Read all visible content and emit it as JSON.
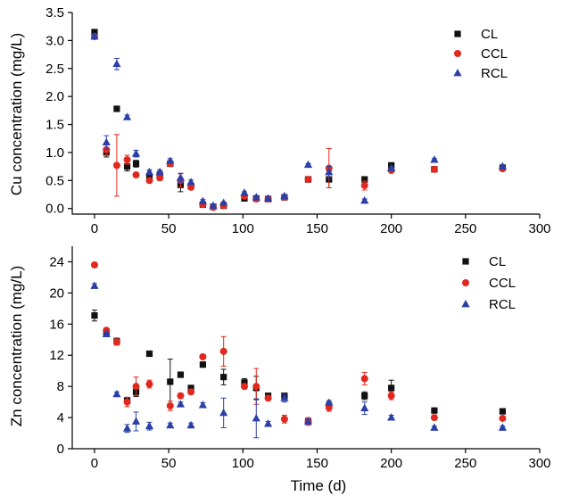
{
  "chart_data": [
    {
      "type": "scatter",
      "ylabel": "Cu concentration (mg/L)",
      "xlabel": "",
      "xlim": [
        -15,
        300
      ],
      "ylim": [
        -0.1,
        3.5
      ],
      "xticks": [
        0,
        50,
        100,
        150,
        200,
        250,
        300
      ],
      "yticks": [
        0.0,
        0.5,
        1.0,
        1.5,
        2.0,
        2.5,
        3.0,
        3.5
      ],
      "ytick_labels": [
        "0.0",
        "0.5",
        "1.0",
        "1.5",
        "2.0",
        "2.5",
        "3.0",
        "3.5"
      ],
      "legend_position": "top-right",
      "series": [
        {
          "name": "CL",
          "marker": "square",
          "color": "#111111",
          "x": [
            0,
            8,
            15,
            22,
            28,
            37,
            44,
            51,
            58,
            65,
            73,
            80,
            87,
            101,
            109,
            117,
            128,
            144,
            158,
            182,
            200,
            229,
            275
          ],
          "y": [
            3.15,
            1.0,
            1.78,
            0.75,
            0.8,
            0.55,
            0.6,
            0.8,
            0.42,
            0.4,
            0.07,
            0.03,
            0.05,
            0.18,
            0.18,
            0.17,
            0.2,
            0.52,
            0.52,
            0.52,
            0.77,
            0.7,
            0.73
          ],
          "err": [
            0.04,
            0.08,
            0,
            0.08,
            0.06,
            0.04,
            0.06,
            0.04,
            0.12,
            0.04,
            0.02,
            0.02,
            0.02,
            0.02,
            0.02,
            0.02,
            0.02,
            0.03,
            0.15,
            0.03,
            0.02,
            0.04,
            0.03
          ]
        },
        {
          "name": "CCL",
          "marker": "circle",
          "color": "#e0281e",
          "x": [
            0,
            8,
            15,
            22,
            28,
            37,
            44,
            51,
            58,
            65,
            73,
            80,
            87,
            101,
            109,
            117,
            128,
            144,
            158,
            182,
            200,
            229,
            275
          ],
          "y": [
            3.07,
            1.05,
            0.77,
            0.87,
            0.6,
            0.5,
            0.55,
            0.8,
            0.5,
            0.38,
            0.07,
            0.02,
            0.05,
            0.22,
            0.17,
            0.17,
            0.2,
            0.52,
            0.72,
            0.41,
            0.68,
            0.7,
            0.71
          ],
          "err": [
            0.03,
            0.1,
            0.55,
            0.08,
            0.04,
            0.04,
            0.05,
            0.04,
            0.12,
            0.04,
            0.03,
            0.02,
            0.02,
            0.03,
            0.03,
            0.02,
            0.02,
            0.03,
            0.35,
            0.08,
            0.02,
            0.03,
            0.02
          ]
        },
        {
          "name": "RCL",
          "marker": "triangle",
          "color": "#2b3fa8",
          "x": [
            0,
            8,
            15,
            22,
            28,
            37,
            44,
            51,
            58,
            65,
            73,
            80,
            87,
            101,
            109,
            117,
            128,
            144,
            158,
            182,
            200,
            229,
            275
          ],
          "y": [
            3.07,
            1.18,
            2.58,
            1.63,
            0.98,
            0.65,
            0.65,
            0.85,
            0.55,
            0.47,
            0.13,
            0.05,
            0.1,
            0.28,
            0.2,
            0.18,
            0.22,
            0.78,
            0.65,
            0.14,
            0.72,
            0.87,
            0.75
          ],
          "err": [
            0.04,
            0.12,
            0.1,
            0.04,
            0.06,
            0.04,
            0.04,
            0.04,
            0.08,
            0.04,
            0.03,
            0.02,
            0.02,
            0.02,
            0.02,
            0.02,
            0.02,
            0.02,
            0.1,
            0.03,
            0.02,
            0.02,
            0.02
          ]
        }
      ]
    },
    {
      "type": "scatter",
      "ylabel": "Zn concentration (mg/L)",
      "xlabel": "Time (d)",
      "xlim": [
        -15,
        300
      ],
      "ylim": [
        0,
        26
      ],
      "xticks": [
        0,
        50,
        100,
        150,
        200,
        250,
        300
      ],
      "yticks": [
        0,
        4,
        8,
        12,
        16,
        20,
        24
      ],
      "ytick_labels": [
        "0",
        "4",
        "8",
        "12",
        "16",
        "20",
        "24"
      ],
      "legend_position": "top-right",
      "series": [
        {
          "name": "CL",
          "marker": "square",
          "color": "#111111",
          "x": [
            0,
            8,
            15,
            22,
            28,
            37,
            51,
            58,
            65,
            73,
            87,
            101,
            109,
            117,
            128,
            144,
            158,
            182,
            200,
            229,
            275
          ],
          "y": [
            17.1,
            14.8,
            13.8,
            6.2,
            7.3,
            12.2,
            8.6,
            9.5,
            7.8,
            10.8,
            9.2,
            8.5,
            7.8,
            6.8,
            6.8,
            3.5,
            5.5,
            6.8,
            7.8,
            4.9,
            4.8
          ],
          "err": [
            0.7,
            0.3,
            0.4,
            0.4,
            0.6,
            0.2,
            2.9,
            0.2,
            0.3,
            0.3,
            1.0,
            0.5,
            1.5,
            0.3,
            0.3,
            0.3,
            0.5,
            0.5,
            1.0,
            0.3,
            0.2
          ],
          "xlabel_note": ""
        },
        {
          "name": "CCL",
          "marker": "circle",
          "color": "#e0281e",
          "x": [
            0,
            8,
            15,
            22,
            28,
            37,
            51,
            58,
            65,
            73,
            87,
            101,
            109,
            117,
            128,
            144,
            158,
            182,
            200,
            229,
            275
          ],
          "y": [
            23.6,
            15.2,
            13.7,
            6.0,
            8.0,
            8.3,
            5.5,
            6.8,
            7.3,
            11.8,
            12.5,
            8.0,
            8.0,
            6.5,
            3.8,
            3.5,
            5.3,
            9.0,
            6.8,
            4.0,
            3.9
          ],
          "err": [
            0.3,
            0.3,
            0.4,
            0.6,
            1.2,
            0.5,
            0.6,
            0.3,
            0.3,
            0.3,
            1.9,
            0.3,
            2.3,
            0.3,
            0.5,
            0.5,
            0.5,
            0.8,
            0.5,
            0.3,
            0.2
          ]
        },
        {
          "name": "RCL",
          "marker": "triangle",
          "color": "#2b3fa8",
          "x": [
            0,
            8,
            15,
            22,
            28,
            37,
            51,
            58,
            65,
            73,
            87,
            109,
            117,
            128,
            144,
            158,
            182,
            200,
            229,
            275
          ],
          "y": [
            20.9,
            14.7,
            7.0,
            2.6,
            3.5,
            2.9,
            3.0,
            5.7,
            3.0,
            5.6,
            4.6,
            3.9,
            3.2,
            6.5,
            3.5,
            5.9,
            5.2,
            4.0,
            2.7,
            2.7
          ],
          "err": [
            0.3,
            0.3,
            0.3,
            0.5,
            1.2,
            0.5,
            0.3,
            0.3,
            0.3,
            0.3,
            1.9,
            2.5,
            0.3,
            0.5,
            0.3,
            0.3,
            0.8,
            0.3,
            0.2,
            0.2
          ]
        }
      ]
    }
  ]
}
